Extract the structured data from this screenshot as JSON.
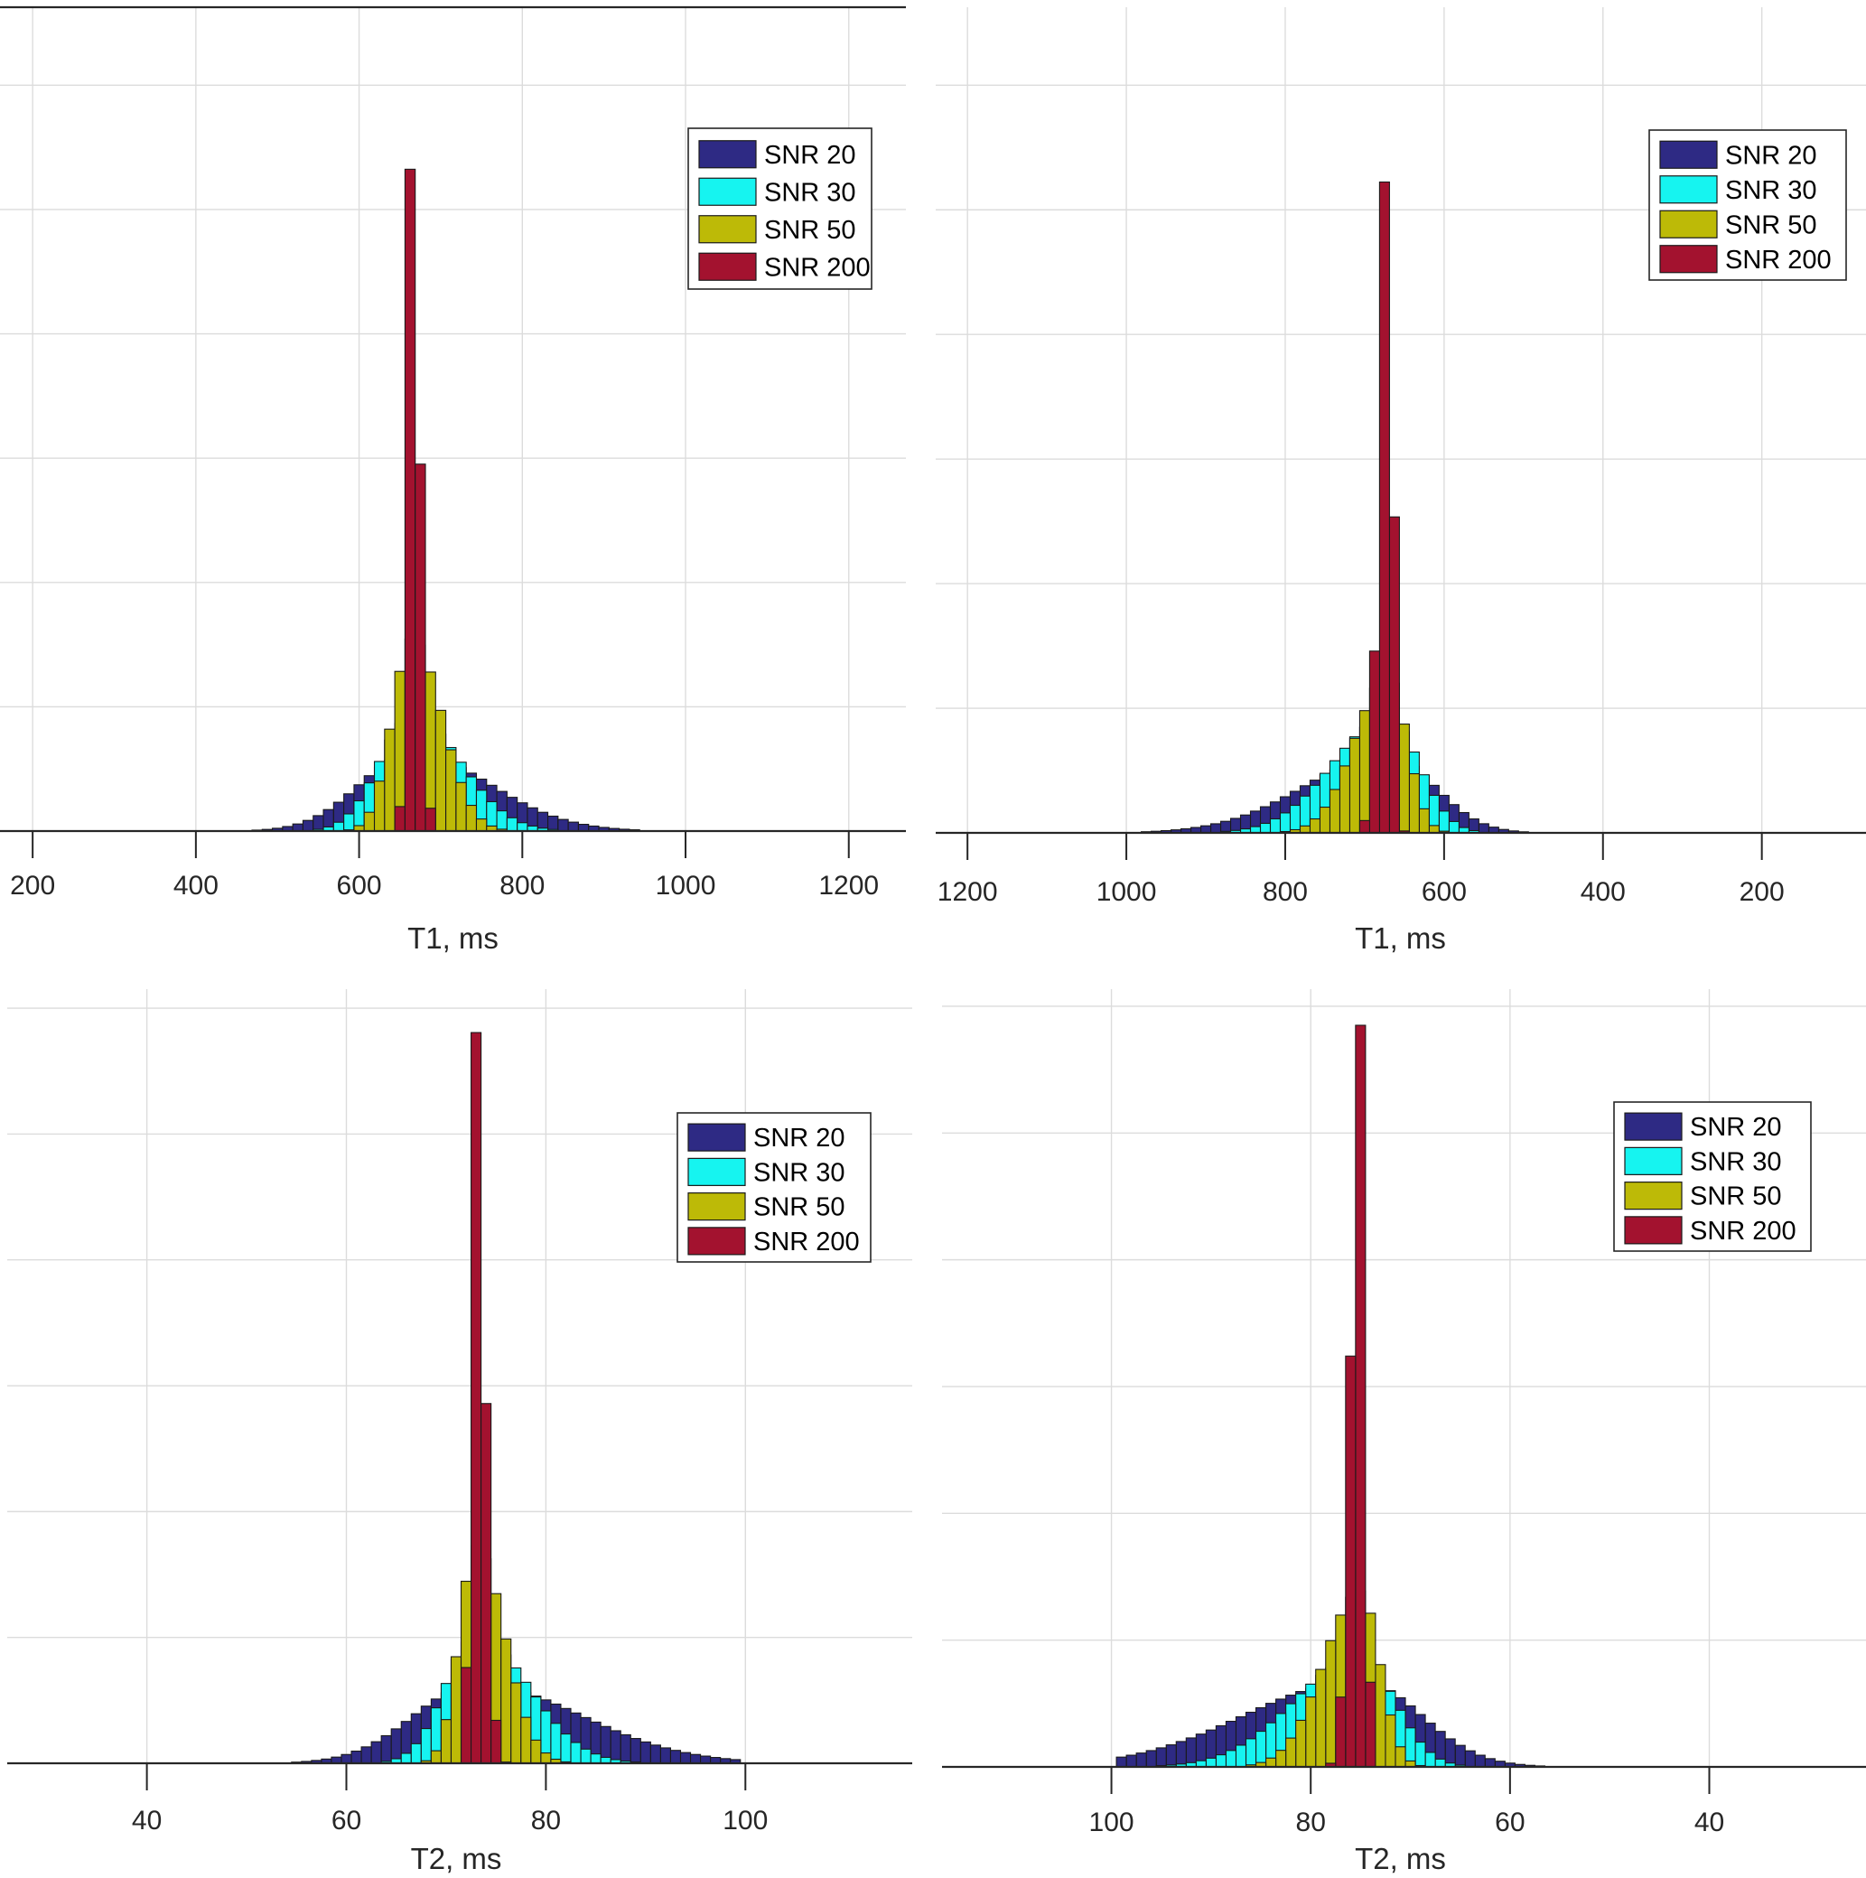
{
  "colors": {
    "snr20": "#2e2a84",
    "snr30": "#16f4f0",
    "snr50": "#bdba07",
    "snr200": "#a3122f"
  },
  "legend": [
    "SNR 20",
    "SNR 30",
    "SNR 50",
    "SNR 200"
  ],
  "chart_data": [
    {
      "type": "bar",
      "panel": "top-left",
      "xlabel": "T1, ms",
      "ylabel": "",
      "xlim": [
        160,
        1270
      ],
      "ylim": [
        0,
        6.1
      ],
      "reversed": false,
      "xticks": [
        200,
        400,
        600,
        800,
        1000,
        1200
      ],
      "legend_position": "top-right",
      "dist": {
        "mu": 665,
        "s_left": 64,
        "s_right": 95,
        "skew_dir": "right"
      },
      "series": [
        {
          "name": "SNR 20",
          "peak": 0.65,
          "width": 1.0,
          "step": 12.5,
          "range": [
            100,
            1400
          ]
        },
        {
          "name": "SNR 30",
          "peak": 0.97,
          "width": 0.62,
          "step": 12.5,
          "range": [
            100,
            1400
          ]
        },
        {
          "name": "SNR 50",
          "peak": 1.62,
          "width": 0.38,
          "step": 12.5,
          "range": [
            100,
            1400
          ]
        },
        {
          "name": "SNR 200",
          "peak": 6.1,
          "width": 0.09,
          "step": 12.5,
          "range": [
            100,
            1400
          ]
        }
      ]
    },
    {
      "type": "bar",
      "panel": "top-right",
      "xlabel": "T1, ms",
      "ylabel": "",
      "xlim": [
        1240,
        70
      ],
      "ylim": [
        0,
        6.1
      ],
      "reversed": true,
      "xticks": [
        1200,
        1000,
        800,
        600,
        400,
        200
      ],
      "legend_position": "top-right",
      "dist": {
        "mu": 670,
        "s_left": 58,
        "s_right": 105,
        "skew_dir": "left"
      },
      "series": [
        {
          "name": "SNR 20",
          "peak": 0.65,
          "width": 1.0,
          "step": 12.5,
          "range": [
            100,
            1400
          ]
        },
        {
          "name": "SNR 30",
          "peak": 0.97,
          "width": 0.66,
          "step": 12.5,
          "range": [
            100,
            1400
          ]
        },
        {
          "name": "SNR 50",
          "peak": 1.32,
          "width": 0.4,
          "step": 12.5,
          "range": [
            100,
            1400
          ]
        },
        {
          "name": "SNR 200",
          "peak": 6.1,
          "width": 0.1,
          "step": 12.5,
          "range": [
            100,
            1400
          ]
        }
      ]
    },
    {
      "type": "bar",
      "panel": "bottom-left",
      "xlabel": "T2, ms",
      "ylabel": "",
      "xlim": [
        26,
        116
      ],
      "ylim": [
        0,
        6.7
      ],
      "reversed": false,
      "xticks": [
        40,
        60,
        80,
        100
      ],
      "legend_position": "top-right",
      "dist": {
        "mu": 73,
        "s_left": 6.2,
        "s_right": 10.5,
        "skew_dir": "right"
      },
      "series": [
        {
          "name": "SNR 20",
          "peak": 0.72,
          "width": 1.0,
          "step": 1.0,
          "range": [
            20,
            99.5
          ]
        },
        {
          "name": "SNR 30",
          "peak": 1.16,
          "width": 0.5,
          "step": 1.0,
          "range": [
            20,
            99.5
          ]
        },
        {
          "name": "SNR 50",
          "peak": 1.98,
          "width": 0.27,
          "step": 1.0,
          "range": [
            20,
            99.5
          ]
        },
        {
          "name": "SNR 200",
          "peak": 6.65,
          "width": 0.08,
          "step": 1.0,
          "range": [
            20,
            99.5
          ]
        }
      ]
    },
    {
      "type": "bar",
      "panel": "bottom-right",
      "xlabel": "T2, ms",
      "ylabel": "",
      "xlim": [
        117,
        25
      ],
      "ylim": [
        0,
        6.7
      ],
      "reversed": true,
      "xticks": [
        100,
        80,
        60,
        40
      ],
      "legend_position": "top-right",
      "dist": {
        "mu": 75,
        "s_left": 6.0,
        "s_right": 11.5,
        "skew_dir": "left"
      },
      "series": [
        {
          "name": "SNR 20",
          "peak": 0.78,
          "width": 1.0,
          "step": 1.0,
          "range": [
            35,
            99.5
          ]
        },
        {
          "name": "SNR 30",
          "peak": 0.99,
          "width": 0.58,
          "step": 1.0,
          "range": [
            35,
            99.5
          ]
        },
        {
          "name": "SNR 50",
          "peak": 1.59,
          "width": 0.32,
          "step": 1.0,
          "range": [
            35,
            99.5
          ]
        },
        {
          "name": "SNR 200",
          "peak": 6.7,
          "width": 0.08,
          "step": 1.0,
          "range": [
            35,
            99.5
          ]
        }
      ]
    }
  ]
}
